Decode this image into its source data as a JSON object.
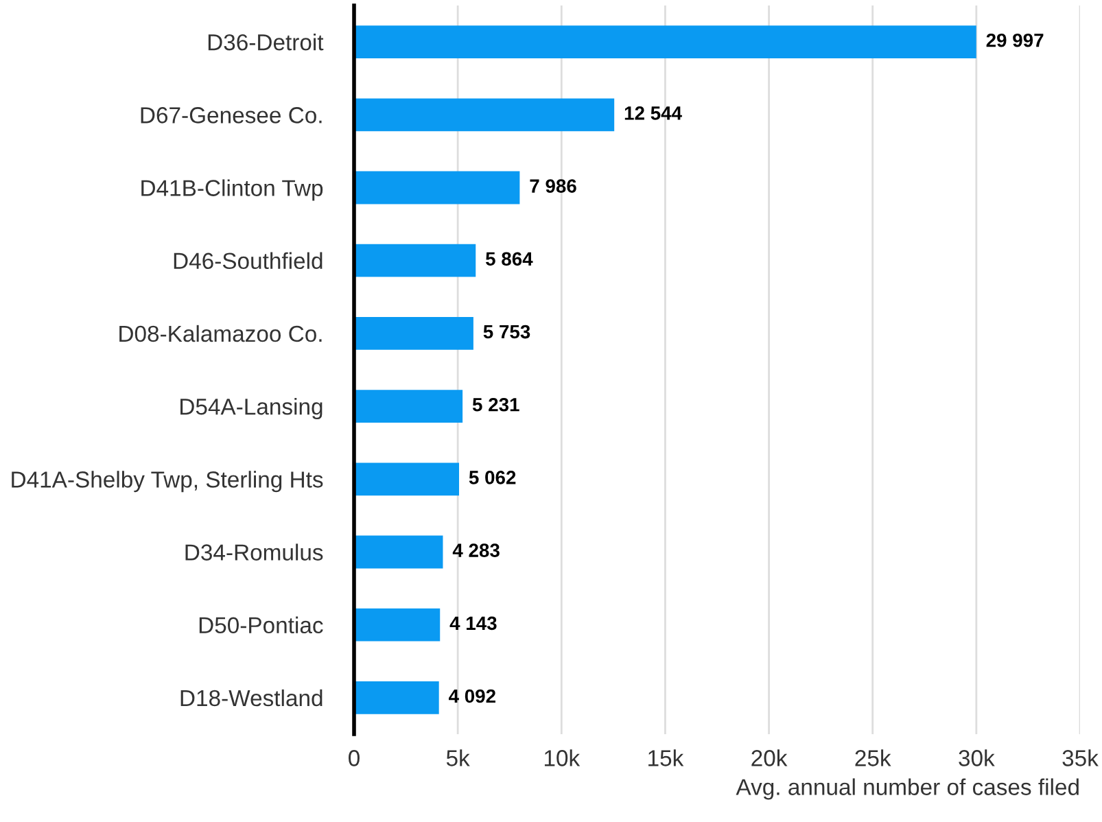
{
  "chart_data": {
    "type": "bar",
    "orientation": "horizontal",
    "categories": [
      "D36-Detroit",
      "D67-Genesee Co.",
      "D41B-Clinton Twp",
      "D46-Southfield",
      "D08-Kalamazoo Co.",
      "D54A-Lansing",
      "D41A-Shelby Twp, Sterling Hts",
      "D34-Romulus",
      "D50-Pontiac",
      "D18-Westland"
    ],
    "values": [
      29997,
      12544,
      7986,
      5864,
      5753,
      5231,
      5062,
      4283,
      4143,
      4092
    ],
    "value_labels": [
      "29 997",
      "12 544",
      "7 986",
      "5 864",
      "5 753",
      "5 231",
      "5 062",
      "4 283",
      "4 143",
      "4 092"
    ],
    "color": "#0a9af2",
    "xlabel": "Avg. annual number of cases filed",
    "xlim": [
      0,
      35000
    ],
    "xticks": [
      0,
      {
        "value": 5000,
        "label": "5k"
      },
      {
        "value": 10000,
        "label": "10k"
      },
      {
        "value": 15000,
        "label": "15k"
      },
      {
        "value": 20000,
        "label": "20k"
      },
      {
        "value": 25000,
        "label": "25k"
      },
      {
        "value": 30000,
        "label": "30k"
      },
      {
        "value": 35000,
        "label": "35k"
      }
    ],
    "grid": "x",
    "legend": false
  }
}
